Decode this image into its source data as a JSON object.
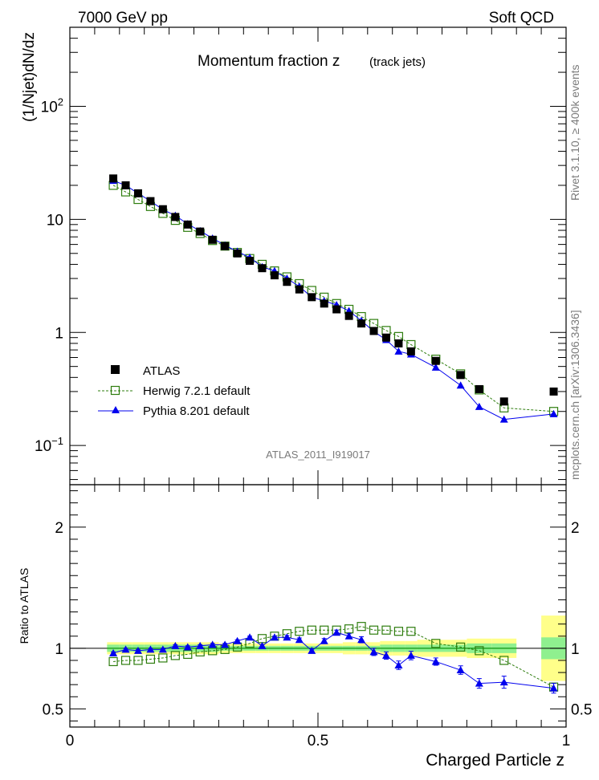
{
  "header": {
    "left": "7000 GeV pp",
    "right": "Soft QCD"
  },
  "side_text": {
    "top": "Rivet 3.1.10, ≥ 400k events",
    "bottom": "mcplots.cern.ch [arXiv:1306.3436]"
  },
  "colors": {
    "data": "#000000",
    "herwig": "#2e7d0e",
    "pythia": "#0000ee",
    "band_inner": "#8ff08f",
    "band_outer": "#ffff8a"
  },
  "chart_data": [
    {
      "type": "line",
      "title": "Momentum fraction z",
      "subtitle": "(track jets)",
      "watermark": "ATLAS_2011_I919017",
      "ylabel": "(1/Njet)dN/dz",
      "yscale": "log",
      "ylim": [
        0.045,
        500
      ],
      "xlim": [
        0,
        1
      ],
      "yticks": [
        {
          "v": 0.1,
          "label": "10",
          "exp": "−1"
        },
        {
          "v": 1,
          "label": "1",
          "exp": ""
        },
        {
          "v": 10,
          "label": "10",
          "exp": ""
        },
        {
          "v": 100,
          "label": "10",
          "exp": "2"
        }
      ],
      "legend": [
        {
          "name": "ATLAS",
          "style": "data"
        },
        {
          "name": "Herwig 7.2.1 default",
          "style": "herwig"
        },
        {
          "name": "Pythia 8.201 default",
          "style": "pythia"
        }
      ],
      "x": [
        0.0875,
        0.1125,
        0.1375,
        0.1625,
        0.1875,
        0.2125,
        0.2375,
        0.2625,
        0.2875,
        0.3125,
        0.3375,
        0.3625,
        0.3875,
        0.4125,
        0.4375,
        0.4625,
        0.4875,
        0.5125,
        0.5375,
        0.5625,
        0.5875,
        0.6125,
        0.6375,
        0.6625,
        0.6875,
        0.7375,
        0.7875,
        0.825,
        0.875,
        0.975
      ],
      "series": [
        {
          "name": "ATLAS",
          "values": [
            23,
            20,
            17,
            14.5,
            12.3,
            10.5,
            9.0,
            7.8,
            6.6,
            5.8,
            5.0,
            4.3,
            3.7,
            3.2,
            2.8,
            2.4,
            2.05,
            1.8,
            1.6,
            1.4,
            1.2,
            1.03,
            0.9,
            0.8,
            0.68,
            0.56,
            0.42,
            0.315,
            0.245,
            0.3
          ]
        },
        {
          "name": "Herwig 7.2.1 default",
          "values": [
            20,
            17.5,
            15,
            13,
            11.3,
            9.8,
            8.5,
            7.5,
            6.5,
            5.8,
            5.1,
            4.5,
            4.0,
            3.5,
            3.1,
            2.7,
            2.35,
            2.05,
            1.8,
            1.6,
            1.38,
            1.2,
            1.04,
            0.92,
            0.78,
            0.58,
            0.43,
            0.31,
            0.215,
            0.2
          ]
        },
        {
          "name": "Pythia 8.201 default",
          "values": [
            22,
            20,
            17,
            14.5,
            12.2,
            10.8,
            9.1,
            7.9,
            6.8,
            5.9,
            5.2,
            4.6,
            3.8,
            3.5,
            3.0,
            2.55,
            2.05,
            1.9,
            1.75,
            1.55,
            1.27,
            1.02,
            0.86,
            0.68,
            0.64,
            0.49,
            0.34,
            0.22,
            0.17,
            0.19
          ]
        }
      ]
    },
    {
      "type": "line",
      "ylabel": "Ratio to ATLAS",
      "xlabel": "Charged Particle z",
      "ylim": [
        0.35,
        2.35
      ],
      "xlim": [
        0,
        1
      ],
      "yticks": [
        0.5,
        1,
        2
      ],
      "xticks": [
        0,
        0.5,
        1
      ],
      "xtick_labels": [
        "0",
        "0.5",
        "1"
      ],
      "band_bins": [
        [
          0.075,
          0.1
        ],
        [
          0.1,
          0.125
        ],
        [
          0.125,
          0.15
        ],
        [
          0.15,
          0.175
        ],
        [
          0.175,
          0.2
        ],
        [
          0.2,
          0.225
        ],
        [
          0.225,
          0.25
        ],
        [
          0.25,
          0.275
        ],
        [
          0.275,
          0.3
        ],
        [
          0.3,
          0.325
        ],
        [
          0.325,
          0.35
        ],
        [
          0.35,
          0.375
        ],
        [
          0.375,
          0.4
        ],
        [
          0.4,
          0.425
        ],
        [
          0.425,
          0.45
        ],
        [
          0.45,
          0.475
        ],
        [
          0.475,
          0.5
        ],
        [
          0.5,
          0.525
        ],
        [
          0.525,
          0.55
        ],
        [
          0.55,
          0.575
        ],
        [
          0.575,
          0.6
        ],
        [
          0.6,
          0.625
        ],
        [
          0.625,
          0.65
        ],
        [
          0.65,
          0.675
        ],
        [
          0.675,
          0.7
        ],
        [
          0.7,
          0.75
        ],
        [
          0.75,
          0.8
        ],
        [
          0.8,
          0.85
        ],
        [
          0.85,
          0.9
        ],
        [
          0.95,
          1.0
        ]
      ],
      "band_inner": [
        0.03,
        0.03,
        0.03,
        0.03,
        0.03,
        0.03,
        0.03,
        0.03,
        0.03,
        0.02,
        0.02,
        0.02,
        0.02,
        0.02,
        0.02,
        0.02,
        0.02,
        0.02,
        0.02,
        0.02,
        0.02,
        0.02,
        0.03,
        0.03,
        0.03,
        0.03,
        0.03,
        0.04,
        0.04,
        0.09
      ],
      "band_outer": [
        0.05,
        0.05,
        0.05,
        0.05,
        0.05,
        0.05,
        0.05,
        0.05,
        0.05,
        0.04,
        0.04,
        0.04,
        0.04,
        0.04,
        0.04,
        0.04,
        0.04,
        0.04,
        0.04,
        0.05,
        0.05,
        0.05,
        0.06,
        0.06,
        0.06,
        0.07,
        0.07,
        0.08,
        0.08,
        0.27
      ],
      "herwig_x": [
        0.0875,
        0.1125,
        0.1375,
        0.1625,
        0.1875,
        0.2125,
        0.2375,
        0.2625,
        0.2875,
        0.3125,
        0.3375,
        0.3625,
        0.3875,
        0.4125,
        0.4375,
        0.4625,
        0.4875,
        0.5125,
        0.5375,
        0.5625,
        0.5875,
        0.6125,
        0.6375,
        0.6625,
        0.6875,
        0.7375,
        0.7875,
        0.825,
        0.875,
        0.975
      ],
      "herwig": [
        0.89,
        0.9,
        0.9,
        0.91,
        0.92,
        0.94,
        0.95,
        0.97,
        0.98,
        0.99,
        1.01,
        1.04,
        1.08,
        1.1,
        1.12,
        1.14,
        1.15,
        1.15,
        1.15,
        1.16,
        1.18,
        1.15,
        1.15,
        1.14,
        1.14,
        1.04,
        1.01,
        0.98,
        0.9,
        0.68
      ],
      "pythia_x": [
        0.0875,
        0.1125,
        0.1375,
        0.1625,
        0.1875,
        0.2125,
        0.2375,
        0.2625,
        0.2875,
        0.3125,
        0.3375,
        0.3625,
        0.3875,
        0.4125,
        0.4375,
        0.4625,
        0.4875,
        0.5125,
        0.5375,
        0.5625,
        0.5875,
        0.6125,
        0.6375,
        0.6625,
        0.6875,
        0.7375,
        0.7875,
        0.825,
        0.875,
        0.975
      ],
      "pythia": [
        0.96,
        0.99,
        0.98,
        0.99,
        0.99,
        1.02,
        1.01,
        1.02,
        1.03,
        1.03,
        1.06,
        1.09,
        1.02,
        1.09,
        1.09,
        1.07,
        0.98,
        1.06,
        1.13,
        1.1,
        1.07,
        0.97,
        0.94,
        0.86,
        0.94,
        0.89,
        0.82,
        0.71,
        0.72,
        0.67
      ],
      "pythia_err": [
        0.01,
        0.01,
        0.01,
        0.01,
        0.01,
        0.01,
        0.01,
        0.01,
        0.01,
        0.01,
        0.01,
        0.01,
        0.01,
        0.01,
        0.015,
        0.015,
        0.015,
        0.02,
        0.02,
        0.02,
        0.025,
        0.03,
        0.03,
        0.035,
        0.035,
        0.03,
        0.035,
        0.04,
        0.05,
        0.04
      ]
    }
  ]
}
